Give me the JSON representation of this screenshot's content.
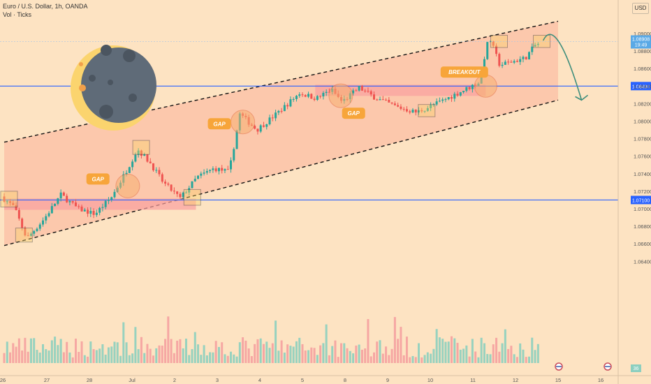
{
  "header": {
    "title": "Euro / U.S. Dollar, 1h, OANDA",
    "indicator": "Vol · Ticks",
    "currency": "USD"
  },
  "colors": {
    "background": "#fde3c2",
    "channel_fill": "#fbbfa4",
    "zone_fill": "#f9a0a0",
    "up": "#26a69a",
    "down": "#ef5350",
    "level_line": "#2962ff",
    "callout": "#f7a53a",
    "arrow": "#3e8e7c",
    "moon_dark": "#5f6b78",
    "moon_light": "#fbd46e"
  },
  "chart_data": {
    "type": "candlestick",
    "title": "",
    "x_tick_labels": [
      "26",
      "27",
      "28",
      "Jul",
      "2",
      "3",
      "4",
      "5",
      "8",
      "9",
      "10",
      "11",
      "12",
      "15",
      "16"
    ],
    "y_tick_labels": [
      "1.09000",
      "1.08800",
      "1.08600",
      "1.08400",
      "1.08200",
      "1.08000",
      "1.07800",
      "1.07600",
      "1.07400",
      "1.07200",
      "1.07000",
      "1.06800",
      "1.06600",
      "1.06400"
    ],
    "ylim": [
      1.0624,
      1.0914
    ],
    "price_path": [
      {
        "x": 0,
        "price": 1.0714
      },
      {
        "x": 0.3,
        "price": 1.0702
      },
      {
        "x": 0.6,
        "price": 1.0666
      },
      {
        "x": 1.0,
        "price": 1.0688
      },
      {
        "x": 1.4,
        "price": 1.0716
      },
      {
        "x": 1.8,
        "price": 1.07
      },
      {
        "x": 2.2,
        "price": 1.0694
      },
      {
        "x": 2.6,
        "price": 1.0714
      },
      {
        "x": 2.9,
        "price": 1.074
      },
      {
        "x": 3.2,
        "price": 1.0768
      },
      {
        "x": 3.5,
        "price": 1.0752
      },
      {
        "x": 3.8,
        "price": 1.073
      },
      {
        "x": 4.2,
        "price": 1.0712
      },
      {
        "x": 4.6,
        "price": 1.0736
      },
      {
        "x": 5.0,
        "price": 1.0746
      },
      {
        "x": 5.35,
        "price": 1.0742
      },
      {
        "x": 5.6,
        "price": 1.0808
      },
      {
        "x": 6.0,
        "price": 1.079
      },
      {
        "x": 6.5,
        "price": 1.081
      },
      {
        "x": 7.0,
        "price": 1.0832
      },
      {
        "x": 7.4,
        "price": 1.0826
      },
      {
        "x": 7.75,
        "price": 1.0836
      },
      {
        "x": 8.0,
        "price": 1.0822
      },
      {
        "x": 8.4,
        "price": 1.0838
      },
      {
        "x": 8.8,
        "price": 1.0826
      },
      {
        "x": 9.3,
        "price": 1.0816
      },
      {
        "x": 9.75,
        "price": 1.081
      },
      {
        "x": 10.3,
        "price": 1.0822
      },
      {
        "x": 10.8,
        "price": 1.0834
      },
      {
        "x": 11.2,
        "price": 1.0844
      },
      {
        "x": 11.45,
        "price": 1.0896
      },
      {
        "x": 11.7,
        "price": 1.0864
      },
      {
        "x": 12.0,
        "price": 1.0868
      },
      {
        "x": 12.3,
        "price": 1.0872
      },
      {
        "x": 12.55,
        "price": 1.0888
      }
    ],
    "channel": {
      "upper": [
        {
          "x": 0,
          "price": 1.0776
        },
        {
          "x": 13.0,
          "price": 1.0914
        }
      ],
      "lower": [
        {
          "x": 0,
          "price": 1.0658
        },
        {
          "x": 13.0,
          "price": 1.0824
        }
      ]
    },
    "levels": [
      {
        "price": 1.071,
        "label": "1.07100",
        "zone": {
          "x0": 0,
          "x1": 4.5,
          "low": 1.0702,
          "high": 1.071
        }
      },
      {
        "price": 1.084,
        "label": "1.08400",
        "zone": {
          "x0": 7.3,
          "x1": 11.3,
          "low": 1.0832,
          "high": 1.084
        }
      }
    ],
    "current_price": {
      "label": "1.08908",
      "sublabel": "19:49"
    },
    "annotations": [
      {
        "text": "GAP",
        "x": 2.2,
        "price": 1.0734,
        "circle_x": 2.9,
        "circle_price": 1.0726
      },
      {
        "text": "GAP",
        "x": 5.05,
        "price": 1.0797,
        "circle_x": 5.6,
        "circle_price": 1.0799
      },
      {
        "text": "GAP",
        "x": 8.2,
        "price": 1.0809,
        "circle_x": 7.9,
        "circle_price": 1.0829
      },
      {
        "text": "BREAKOUT",
        "x": 10.8,
        "price": 1.0856,
        "circle_x": 11.3,
        "circle_price": 1.084
      }
    ],
    "projection": {
      "start": {
        "x": 12.65,
        "price": 1.0892
      },
      "peak": {
        "x": 12.95,
        "price": 1.0906
      },
      "end": {
        "x": 13.55,
        "price": 1.0824
      }
    },
    "volume_badge": "36",
    "grid": false
  }
}
